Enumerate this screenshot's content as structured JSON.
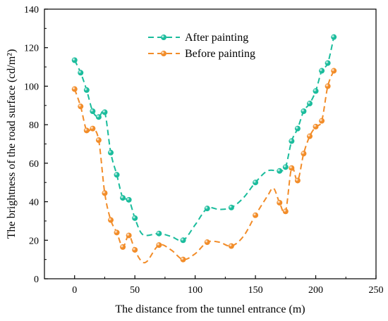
{
  "chart_data": {
    "type": "line",
    "xlabel": "The distance from the tunnel entrance (m)",
    "ylabel": "The brightness of the road surface (cd/m²)",
    "xlim": [
      -25,
      250
    ],
    "ylim": [
      0,
      140
    ],
    "xticks": [
      0,
      50,
      100,
      150,
      200,
      250
    ],
    "yticks": [
      0,
      20,
      40,
      60,
      80,
      100,
      120,
      140
    ],
    "grid": false,
    "legend_position": "top-center",
    "series": [
      {
        "name": "After painting",
        "color": "#1ABC9C",
        "line_style": "dashed",
        "marker": "circle",
        "x": [
          0,
          5,
          10,
          15,
          20,
          25,
          30,
          35,
          40,
          45,
          50,
          70,
          90,
          110,
          130,
          150,
          170,
          175,
          180,
          185,
          190,
          195,
          200,
          205,
          210,
          215
        ],
        "y": [
          113.5,
          107,
          98,
          87,
          84,
          86.5,
          65.5,
          54,
          42,
          41,
          31.5,
          23.5,
          20,
          36.5,
          37,
          50,
          56,
          58,
          71.5,
          78,
          87,
          91,
          97.5,
          108,
          112,
          125.5
        ],
        "curve_x": [
          0,
          5,
          10,
          15,
          20,
          25,
          30,
          35,
          40,
          45,
          50,
          55,
          60,
          70,
          80,
          90,
          100,
          110,
          120,
          130,
          140,
          150,
          160,
          170,
          175,
          180,
          185,
          190,
          195,
          200,
          205,
          210,
          215
        ],
        "curve_y": [
          113.5,
          107,
          98,
          87,
          84,
          86.5,
          65.5,
          54,
          42,
          41,
          31.5,
          24,
          22.5,
          23.5,
          22,
          20,
          28,
          36.5,
          36,
          37,
          42,
          50,
          56,
          56,
          58,
          71.5,
          78,
          87,
          91,
          97.5,
          108,
          112,
          125.5
        ]
      },
      {
        "name": "Before painting",
        "color": "#F28C28",
        "line_style": "dashed",
        "marker": "circle",
        "x": [
          0,
          5,
          10,
          15,
          20,
          25,
          30,
          35,
          40,
          45,
          50,
          70,
          90,
          110,
          130,
          150,
          170,
          175,
          180,
          185,
          190,
          195,
          200,
          205,
          210,
          215
        ],
        "y": [
          98.5,
          89.5,
          77,
          78,
          72,
          44.5,
          30.5,
          24,
          16.5,
          22.5,
          15,
          17.5,
          10,
          19,
          17,
          33,
          39.5,
          35,
          57.5,
          51,
          65,
          74,
          79,
          82,
          100,
          108
        ],
        "curve_x": [
          0,
          5,
          10,
          15,
          20,
          25,
          30,
          35,
          40,
          45,
          50,
          55,
          60,
          70,
          80,
          90,
          100,
          110,
          120,
          130,
          140,
          150,
          160,
          165,
          170,
          175,
          180,
          185,
          190,
          195,
          200,
          205,
          210,
          215
        ],
        "curve_y": [
          98.5,
          89.5,
          77,
          78,
          72,
          44.5,
          30.5,
          24,
          16.5,
          22.5,
          15,
          9.5,
          9,
          17.5,
          15,
          10,
          13,
          19,
          19,
          17,
          22,
          33,
          43,
          47,
          39.5,
          35,
          57.5,
          51,
          65,
          74,
          79,
          82,
          100,
          108
        ]
      }
    ]
  }
}
